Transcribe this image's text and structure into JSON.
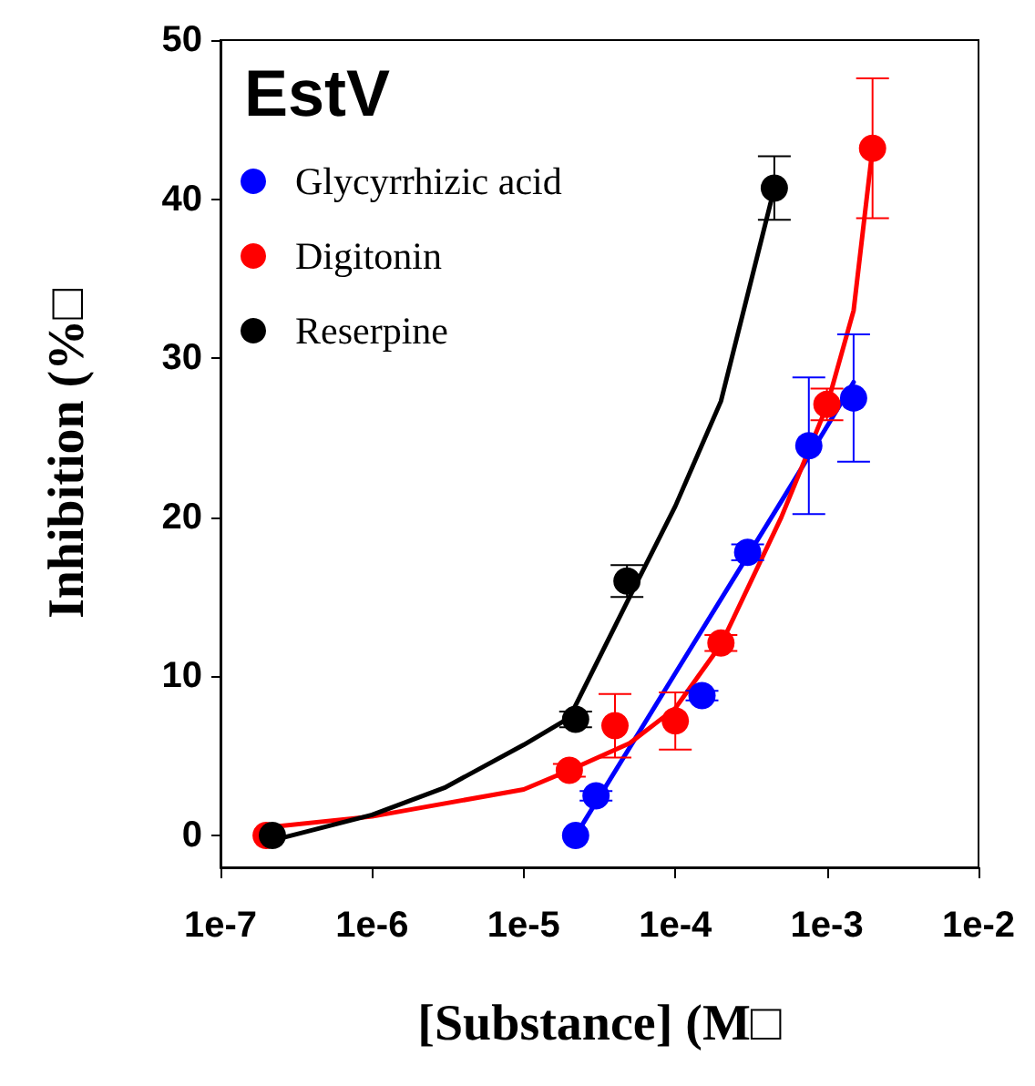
{
  "chart_data": {
    "type": "scatter",
    "title": "EstV",
    "xlabel": "[Substance] (M□",
    "ylabel": "Inhibition (%□",
    "log": "x",
    "xlim": [
      1e-07,
      0.01
    ],
    "xticks": [
      {
        "value": 1e-07,
        "label": "1e-7"
      },
      {
        "value": 1e-06,
        "label": "1e-6"
      },
      {
        "value": 1e-05,
        "label": "1e-5"
      },
      {
        "value": 0.0001,
        "label": "1e-4"
      },
      {
        "value": 0.001,
        "label": "1e-3"
      },
      {
        "value": 0.01,
        "label": "1e-2"
      }
    ],
    "ylim": [
      -2,
      50
    ],
    "yticks": [
      0,
      10,
      20,
      30,
      40,
      50
    ],
    "grid": false,
    "legend": "top left",
    "marker": "circle",
    "series": [
      {
        "name": "Glycyrrhizic acid",
        "color": "#0000ff",
        "x": [
          2.2e-05,
          3e-05,
          0.00015,
          0.0003,
          0.00076,
          0.0015
        ],
        "values": [
          0,
          2.5,
          8.8,
          17.8,
          24.5,
          27.5
        ],
        "errors": [
          null,
          0.3,
          0.3,
          0.5,
          4.3,
          4
        ]
      },
      {
        "name": "Digitonin",
        "color": "#ff0000",
        "x": [
          2e-07,
          2e-05,
          4e-05,
          0.0001,
          0.0002,
          0.001,
          0.002
        ],
        "values": [
          0,
          4.1,
          6.9,
          7.2,
          12.1,
          27.1,
          43.2
        ],
        "errors": [
          null,
          0.4,
          2,
          1.8,
          0.5,
          1,
          4.4
        ]
      },
      {
        "name": "Reserpine",
        "color": "#000000",
        "x": [
          2.2e-07,
          2.2e-05,
          4.8e-05,
          0.00045
        ],
        "values": [
          0,
          7.3,
          16,
          40.7
        ],
        "errors": [
          null,
          0.5,
          1,
          2
        ]
      },
      {
        "type": "line",
        "marker": "none",
        "color": "#0000ff",
        "x": [
          2.2e-05,
          0.0001,
          0.0005,
          0.001,
          0.0015
        ],
        "values": [
          0,
          10.2,
          21,
          25.7,
          28.5
        ]
      },
      {
        "type": "line",
        "marker": "none",
        "color": "#ff0000",
        "x": [
          2e-07,
          1e-06,
          1e-05,
          2e-05,
          5e-05,
          0.0001,
          0.0002,
          0.0005,
          0.001,
          0.0015,
          0.002
        ],
        "values": [
          0.5,
          1.2,
          2.9,
          4.1,
          5.8,
          8,
          12,
          20,
          27,
          33,
          43.2
        ]
      },
      {
        "type": "line",
        "marker": "none",
        "color": "#000000",
        "x": [
          2.2e-07,
          1e-06,
          3e-06,
          1e-05,
          2e-05,
          5e-05,
          0.0001,
          0.0002,
          0.00045
        ],
        "values": [
          -0.3,
          1.3,
          3,
          5.7,
          7.4,
          15,
          20.7,
          27.3,
          40.7
        ]
      }
    ]
  }
}
